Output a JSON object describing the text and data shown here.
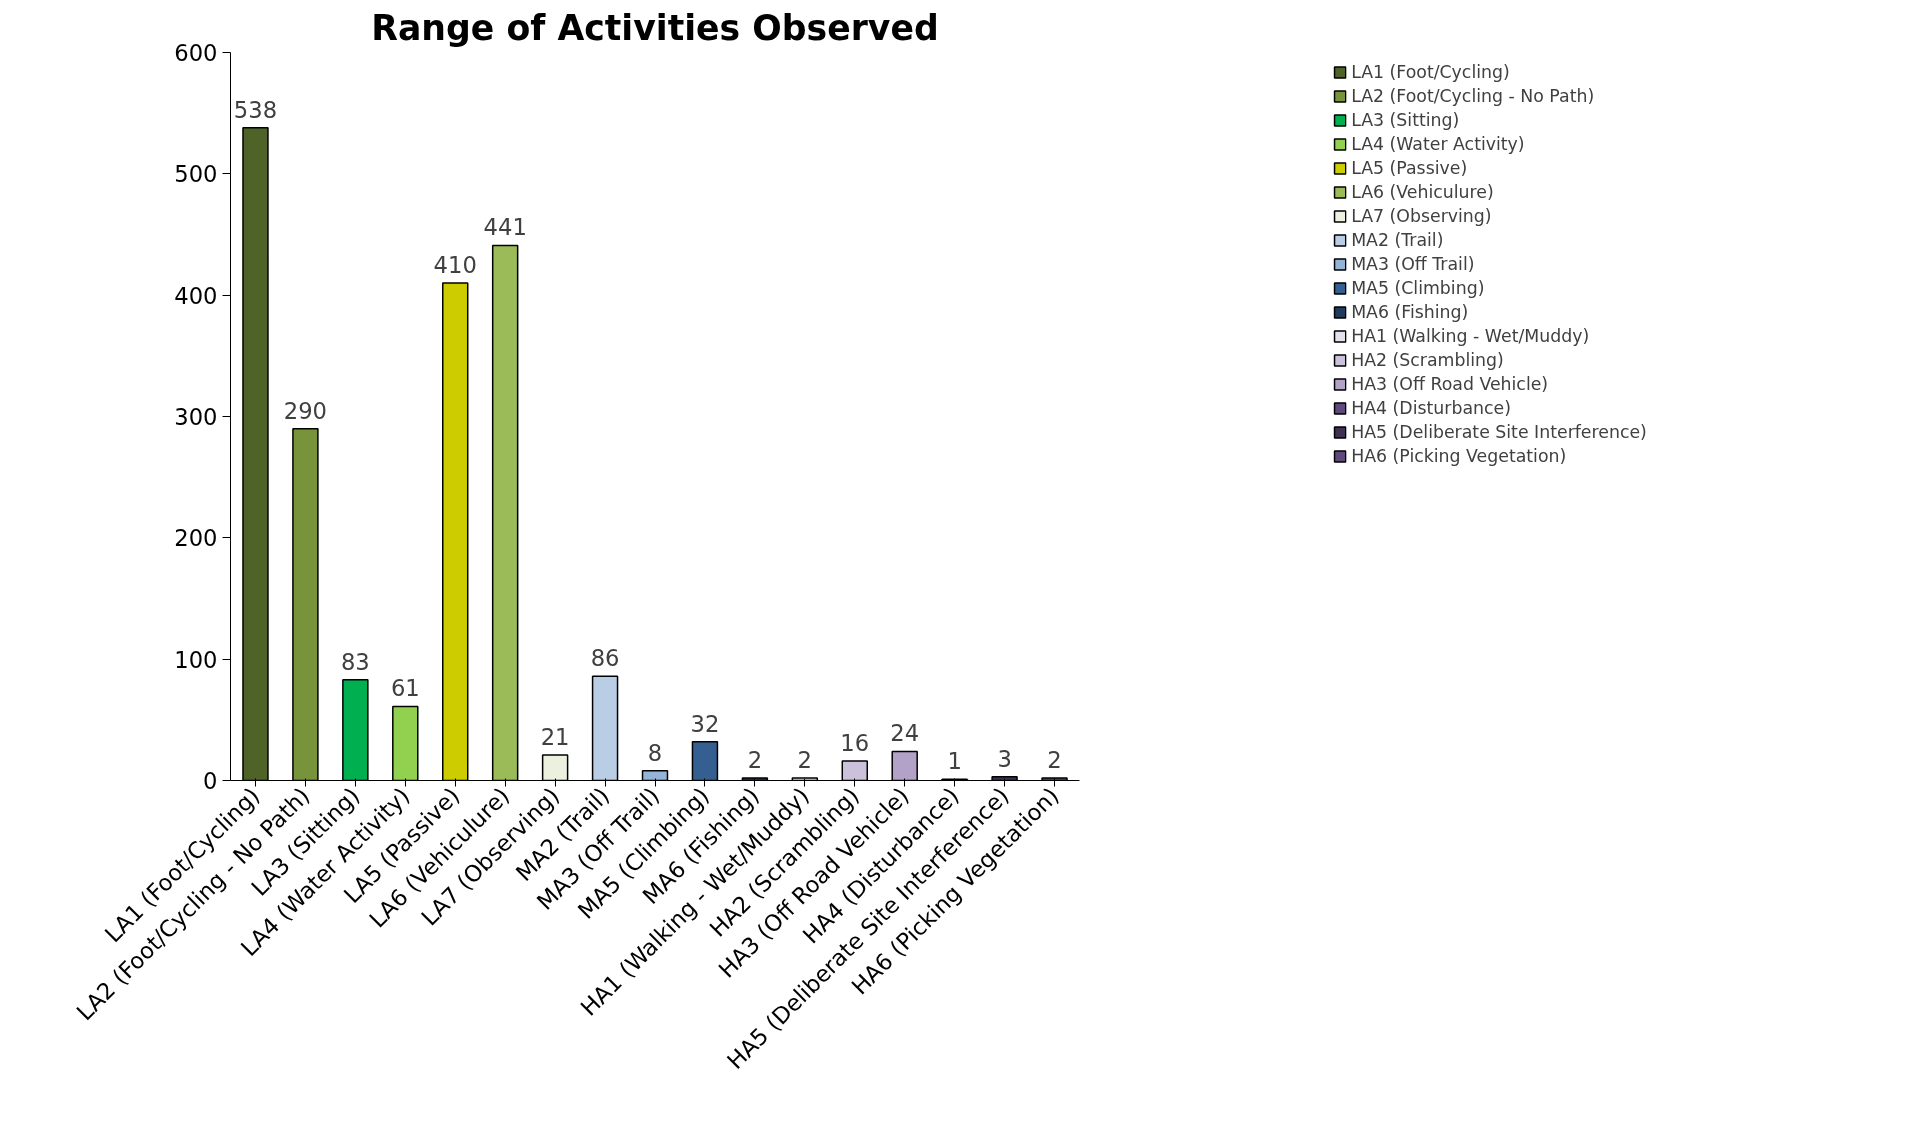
{
  "chart_data": {
    "type": "bar",
    "title": "Range of Activities Observed",
    "categories": [
      "LA1 (Foot/Cycling)",
      "LA2 (Foot/Cycling - No Path)",
      "LA3 (Sitting)",
      "LA4 (Water Activity)",
      "LA5 (Passive)",
      "LA6 (Vehiculure)",
      "LA7 (Observing)",
      "MA2 (Trail)",
      "MA3 (Off Trail)",
      "MA5 (Climbing)",
      "MA6 (Fishing)",
      "HA1 (Walking - Wet/Muddy)",
      "HA2 (Scrambling)",
      "HA3 (Off Road Vehicle)",
      "HA4 (Disturbance)",
      "HA5 (Deliberate Site Interference)",
      "HA6 (Picking Vegetation)"
    ],
    "series": [
      {
        "name": "LA1 (Foot/Cycling)",
        "color": "#4f6228",
        "values": [
          538,
          null,
          null,
          null,
          null,
          null,
          null,
          null,
          null,
          null,
          null,
          null,
          null,
          null,
          null,
          null,
          null
        ]
      },
      {
        "name": "LA2 (Foot/Cycling - No Path)",
        "color": "#77933c",
        "values": [
          null,
          290,
          null,
          null,
          null,
          null,
          null,
          null,
          null,
          null,
          null,
          null,
          null,
          null,
          null,
          null,
          null
        ]
      },
      {
        "name": "LA3 (Sitting)",
        "color": "#00b050",
        "values": [
          null,
          null,
          83,
          null,
          null,
          null,
          null,
          null,
          null,
          null,
          null,
          null,
          null,
          null,
          null,
          null,
          null
        ]
      },
      {
        "name": "LA4 (Water Activity)",
        "color": "#92d050",
        "values": [
          null,
          null,
          null,
          61,
          null,
          null,
          null,
          null,
          null,
          null,
          null,
          null,
          null,
          null,
          null,
          null,
          null
        ]
      },
      {
        "name": "LA5 (Passive)",
        "color": "#cccc00",
        "values": [
          null,
          null,
          null,
          null,
          410,
          null,
          null,
          null,
          null,
          null,
          null,
          null,
          null,
          null,
          null,
          null,
          null
        ]
      },
      {
        "name": "LA6 (Vehiculure)",
        "color": "#9bbb59",
        "values": [
          null,
          null,
          null,
          null,
          null,
          441,
          null,
          null,
          null,
          null,
          null,
          null,
          null,
          null,
          null,
          null,
          null
        ]
      },
      {
        "name": "LA7 (Observing)",
        "color": "#ebf1de",
        "values": [
          null,
          null,
          null,
          null,
          null,
          null,
          21,
          null,
          null,
          null,
          null,
          null,
          null,
          null,
          null,
          null,
          null
        ]
      },
      {
        "name": "MA2 (Trail)",
        "color": "#b9cde5",
        "values": [
          null,
          null,
          null,
          null,
          null,
          null,
          null,
          86,
          null,
          null,
          null,
          null,
          null,
          null,
          null,
          null,
          null
        ]
      },
      {
        "name": "MA3 (Off Trail)",
        "color": "#95b3d7",
        "values": [
          null,
          null,
          null,
          null,
          null,
          null,
          null,
          null,
          8,
          null,
          null,
          null,
          null,
          null,
          null,
          null,
          null
        ]
      },
      {
        "name": "MA5 (Climbing)",
        "color": "#355f91",
        "values": [
          null,
          null,
          null,
          null,
          null,
          null,
          null,
          null,
          null,
          32,
          null,
          null,
          null,
          null,
          null,
          null,
          null
        ]
      },
      {
        "name": "MA6 (Fishing)",
        "color": "#1f3a5c",
        "values": [
          null,
          null,
          null,
          null,
          null,
          null,
          null,
          null,
          null,
          null,
          2,
          null,
          null,
          null,
          null,
          null,
          null
        ]
      },
      {
        "name": "HA1 (Walking - Wet/Muddy)",
        "color": "#e6e0ec",
        "values": [
          null,
          null,
          null,
          null,
          null,
          null,
          null,
          null,
          null,
          null,
          null,
          2,
          null,
          null,
          null,
          null,
          null
        ]
      },
      {
        "name": "HA2 (Scrambling)",
        "color": "#ccc1da",
        "values": [
          null,
          null,
          null,
          null,
          null,
          null,
          null,
          null,
          null,
          null,
          null,
          null,
          16,
          null,
          null,
          null,
          null
        ]
      },
      {
        "name": "HA3 (Off Road Vehicle)",
        "color": "#b3a2c7",
        "values": [
          null,
          null,
          null,
          null,
          null,
          null,
          null,
          null,
          null,
          null,
          null,
          null,
          null,
          24,
          null,
          null,
          null
        ]
      },
      {
        "name": "HA4 (Disturbance)",
        "color": "#604a7b",
        "values": [
          null,
          null,
          null,
          null,
          null,
          null,
          null,
          null,
          null,
          null,
          null,
          null,
          null,
          null,
          1,
          null,
          null
        ]
      },
      {
        "name": "HA5 (Deliberate Site Interference)",
        "color": "#3f3151",
        "values": [
          null,
          null,
          null,
          null,
          null,
          null,
          null,
          null,
          null,
          null,
          null,
          null,
          null,
          null,
          null,
          3,
          null
        ]
      },
      {
        "name": "HA6 (Picking Vegetation)",
        "color": "#5f497a",
        "values": [
          null,
          null,
          null,
          null,
          null,
          null,
          null,
          null,
          null,
          null,
          null,
          null,
          null,
          null,
          null,
          null,
          2
        ]
      }
    ],
    "ylim": [
      0,
      600
    ],
    "yticks": [
      0,
      100,
      200,
      300,
      400,
      500,
      600
    ],
    "data_labels": true,
    "legend": "top right",
    "grid": false
  }
}
